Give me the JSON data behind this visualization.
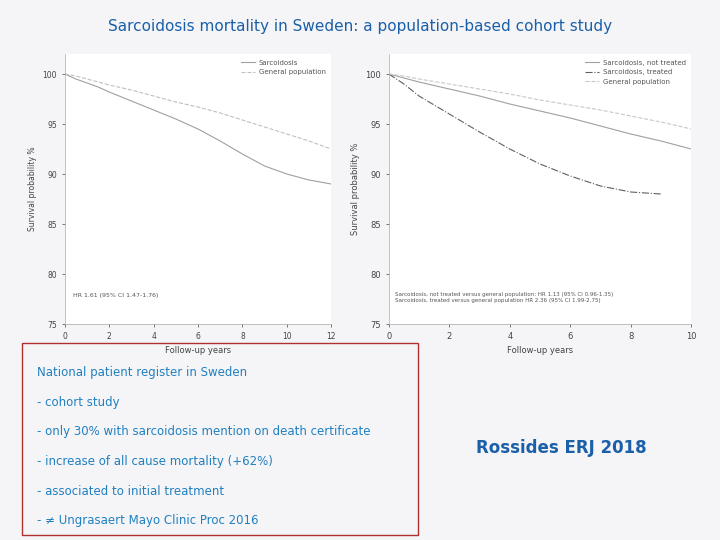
{
  "title": "Sarcoidosis mortality in Sweden: a population-based cohort study",
  "title_color": "#1a5fa8",
  "title_fontsize": 11,
  "bg_color": "#f5f5f8",
  "plot1": {
    "x_sarcoidosis": [
      0,
      0.5,
      1,
      1.5,
      2,
      3,
      4,
      5,
      6,
      7,
      8,
      9,
      10,
      11,
      12
    ],
    "y_sarcoidosis": [
      100,
      99.5,
      99.1,
      98.7,
      98.2,
      97.3,
      96.4,
      95.5,
      94.5,
      93.3,
      92.0,
      90.8,
      90.0,
      89.4,
      89.0
    ],
    "x_genpop": [
      0,
      0.5,
      1,
      1.5,
      2,
      3,
      4,
      5,
      6,
      7,
      8,
      9,
      10,
      11,
      12
    ],
    "y_genpop": [
      100,
      99.8,
      99.5,
      99.2,
      98.9,
      98.4,
      97.8,
      97.2,
      96.7,
      96.1,
      95.4,
      94.7,
      94.0,
      93.3,
      92.5
    ],
    "ylabel": "Survival probability %",
    "xlabel": "Follow-up years",
    "ylim": [
      75,
      102
    ],
    "xlim": [
      0,
      12
    ],
    "yticks": [
      75,
      80,
      85,
      90,
      95,
      100
    ],
    "xticks": [
      0,
      2,
      4,
      6,
      8,
      10,
      12
    ],
    "legend_labels": [
      "Sarcoidosis",
      "General population"
    ],
    "annotation": "HR 1.61 (95% CI 1.47-1.76)",
    "line_color_sarcoidosis": "#a0a0a0",
    "line_color_genpop": "#c0c0c0"
  },
  "plot2": {
    "x_not_treated": [
      0,
      0.5,
      1,
      2,
      3,
      4,
      5,
      6,
      7,
      8,
      9,
      10
    ],
    "y_not_treated": [
      100,
      99.6,
      99.2,
      98.5,
      97.8,
      97.0,
      96.3,
      95.6,
      94.8,
      94.0,
      93.3,
      92.5
    ],
    "x_treated": [
      0,
      0.5,
      1,
      2,
      3,
      4,
      5,
      6,
      7,
      8,
      9
    ],
    "y_treated": [
      100,
      99.0,
      97.8,
      96.0,
      94.2,
      92.5,
      91.0,
      89.8,
      88.8,
      88.2,
      88.0
    ],
    "x_genpop": [
      0,
      0.5,
      1,
      2,
      3,
      4,
      5,
      6,
      7,
      8,
      9,
      10
    ],
    "y_genpop": [
      100,
      99.8,
      99.5,
      99.0,
      98.5,
      98.0,
      97.4,
      96.9,
      96.4,
      95.8,
      95.2,
      94.5
    ],
    "ylabel": "Survival probability %",
    "xlabel": "Follow-up years",
    "ylim": [
      75,
      102
    ],
    "xlim": [
      0,
      10
    ],
    "yticks": [
      75,
      80,
      85,
      90,
      95,
      100
    ],
    "xticks": [
      0,
      2,
      4,
      6,
      8,
      10
    ],
    "legend_labels": [
      "Sarcoidosis, not treated",
      "Sarcoidosis, treated",
      "General population"
    ],
    "annotation": "Sarcoidosis, not treated versus general population: HR 1.13 (95% CI 0.96-1.35)\nSarcoidosis, treated versus general population HR 2.36 (95% CI 1.99-2.75)",
    "line_color_not_treated": "#a0a0a0",
    "line_color_treated": "#606060",
    "line_color_genpop": "#c8c8c8"
  },
  "bullet_box": {
    "lines": [
      "National patient register in Sweden",
      "- cohort study",
      "- only 30% with sarcoidosis mention on death certificate",
      "- increase of all cause mortality (+62%)",
      "- associated to initial treatment",
      "- ≠ Ungrasaert Mayo Clinic Proc 2016"
    ],
    "text_color": "#2080c0",
    "box_edge_color": "#b03030",
    "fontsize": 8.5
  },
  "citation": "Rossides ERJ 2018",
  "citation_color": "#1a5fa8",
  "citation_fontsize": 12
}
